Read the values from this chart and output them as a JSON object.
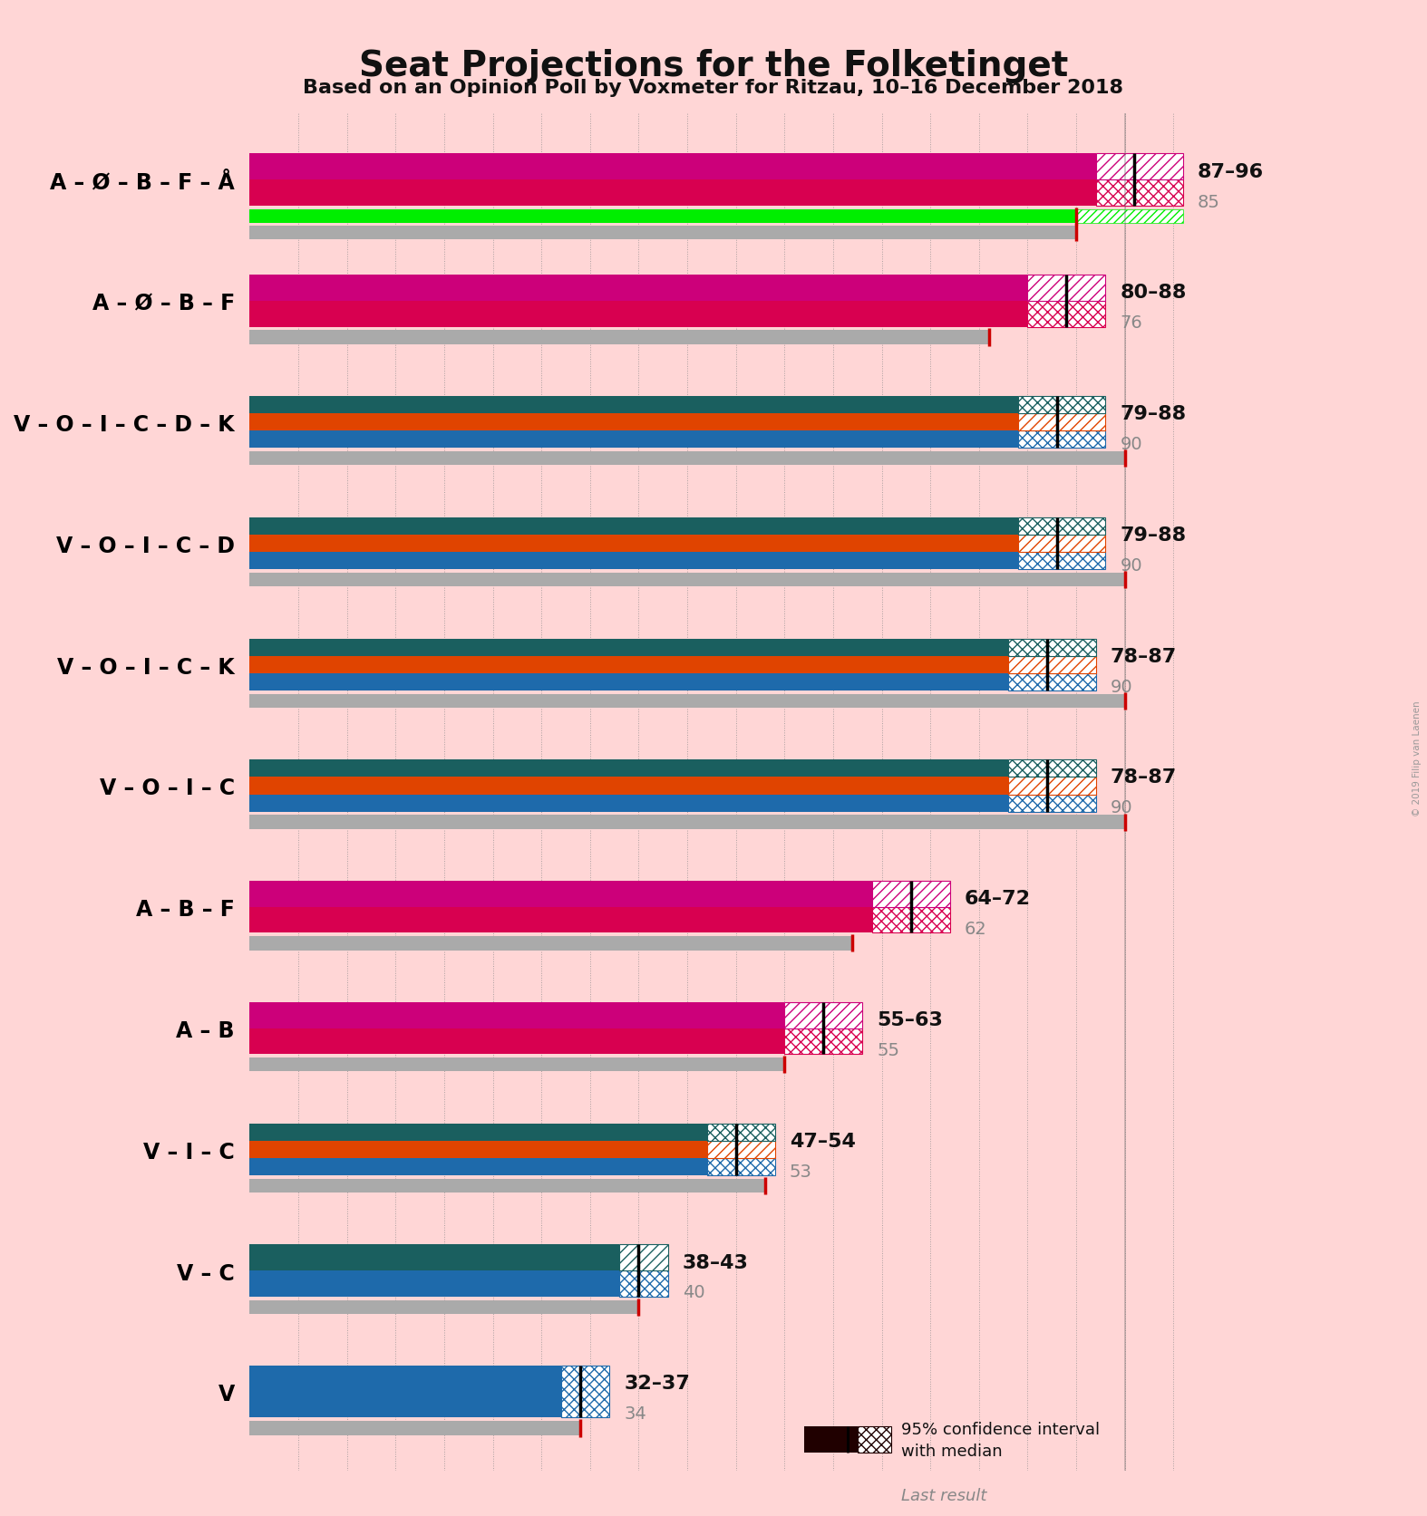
{
  "title": "Seat Projections for the Folketinget",
  "subtitle": "Based on an Opinion Poll by Voxmeter for Ritzau, 10–16 December 2018",
  "watermark": "© 2019 Filip van Laenen",
  "background_color": "#FFD6D6",
  "coalitions": [
    {
      "label": "A – Ø – B – F – Å",
      "low": 87,
      "high": 96,
      "median": 91,
      "last_result": 85,
      "bar_colors": [
        "#D80050",
        "#CC007A"
      ],
      "has_green": true
    },
    {
      "label": "A – Ø – B – F",
      "low": 80,
      "high": 88,
      "median": 84,
      "last_result": 76,
      "bar_colors": [
        "#D80050",
        "#CC007A"
      ],
      "has_green": false
    },
    {
      "label": "V – O – I – C – D – K",
      "low": 79,
      "high": 88,
      "median": 83,
      "last_result": 90,
      "bar_colors": [
        "#1E6AAB",
        "#E04400",
        "#1A5F5F"
      ],
      "has_green": false
    },
    {
      "label": "V – O – I – C – D",
      "low": 79,
      "high": 88,
      "median": 83,
      "last_result": 90,
      "bar_colors": [
        "#1E6AAB",
        "#E04400",
        "#1A5F5F"
      ],
      "has_green": false
    },
    {
      "label": "V – O – I – C – K",
      "low": 78,
      "high": 87,
      "median": 82,
      "last_result": 90,
      "bar_colors": [
        "#1E6AAB",
        "#E04400",
        "#1A5F5F"
      ],
      "has_green": false
    },
    {
      "label": "V – O – I – C",
      "low": 78,
      "high": 87,
      "median": 82,
      "last_result": 90,
      "bar_colors": [
        "#1E6AAB",
        "#E04400",
        "#1A5F5F"
      ],
      "has_green": false
    },
    {
      "label": "A – B – F",
      "low": 64,
      "high": 72,
      "median": 68,
      "last_result": 62,
      "bar_colors": [
        "#D80050",
        "#CC007A"
      ],
      "has_green": false
    },
    {
      "label": "A – B",
      "low": 55,
      "high": 63,
      "median": 59,
      "last_result": 55,
      "bar_colors": [
        "#D80050",
        "#CC007A"
      ],
      "has_green": false
    },
    {
      "label": "V – I – C",
      "low": 47,
      "high": 54,
      "median": 50,
      "last_result": 53,
      "bar_colors": [
        "#1E6AAB",
        "#E04400",
        "#1A5F5F"
      ],
      "has_green": false
    },
    {
      "label": "V – C",
      "low": 38,
      "high": 43,
      "median": 40,
      "last_result": 40,
      "bar_colors": [
        "#1E6AAB",
        "#1A5F5F"
      ],
      "has_green": false
    },
    {
      "label": "V",
      "low": 32,
      "high": 37,
      "median": 34,
      "last_result": 34,
      "bar_colors": [
        "#1E6AAB"
      ],
      "has_green": false
    }
  ],
  "xmax": 100,
  "majority_line": 90,
  "green_color": "#00EE00",
  "gray_color": "#AAAAAA",
  "red_tick_color": "#CC0000",
  "legend_ci_color": "#200000"
}
